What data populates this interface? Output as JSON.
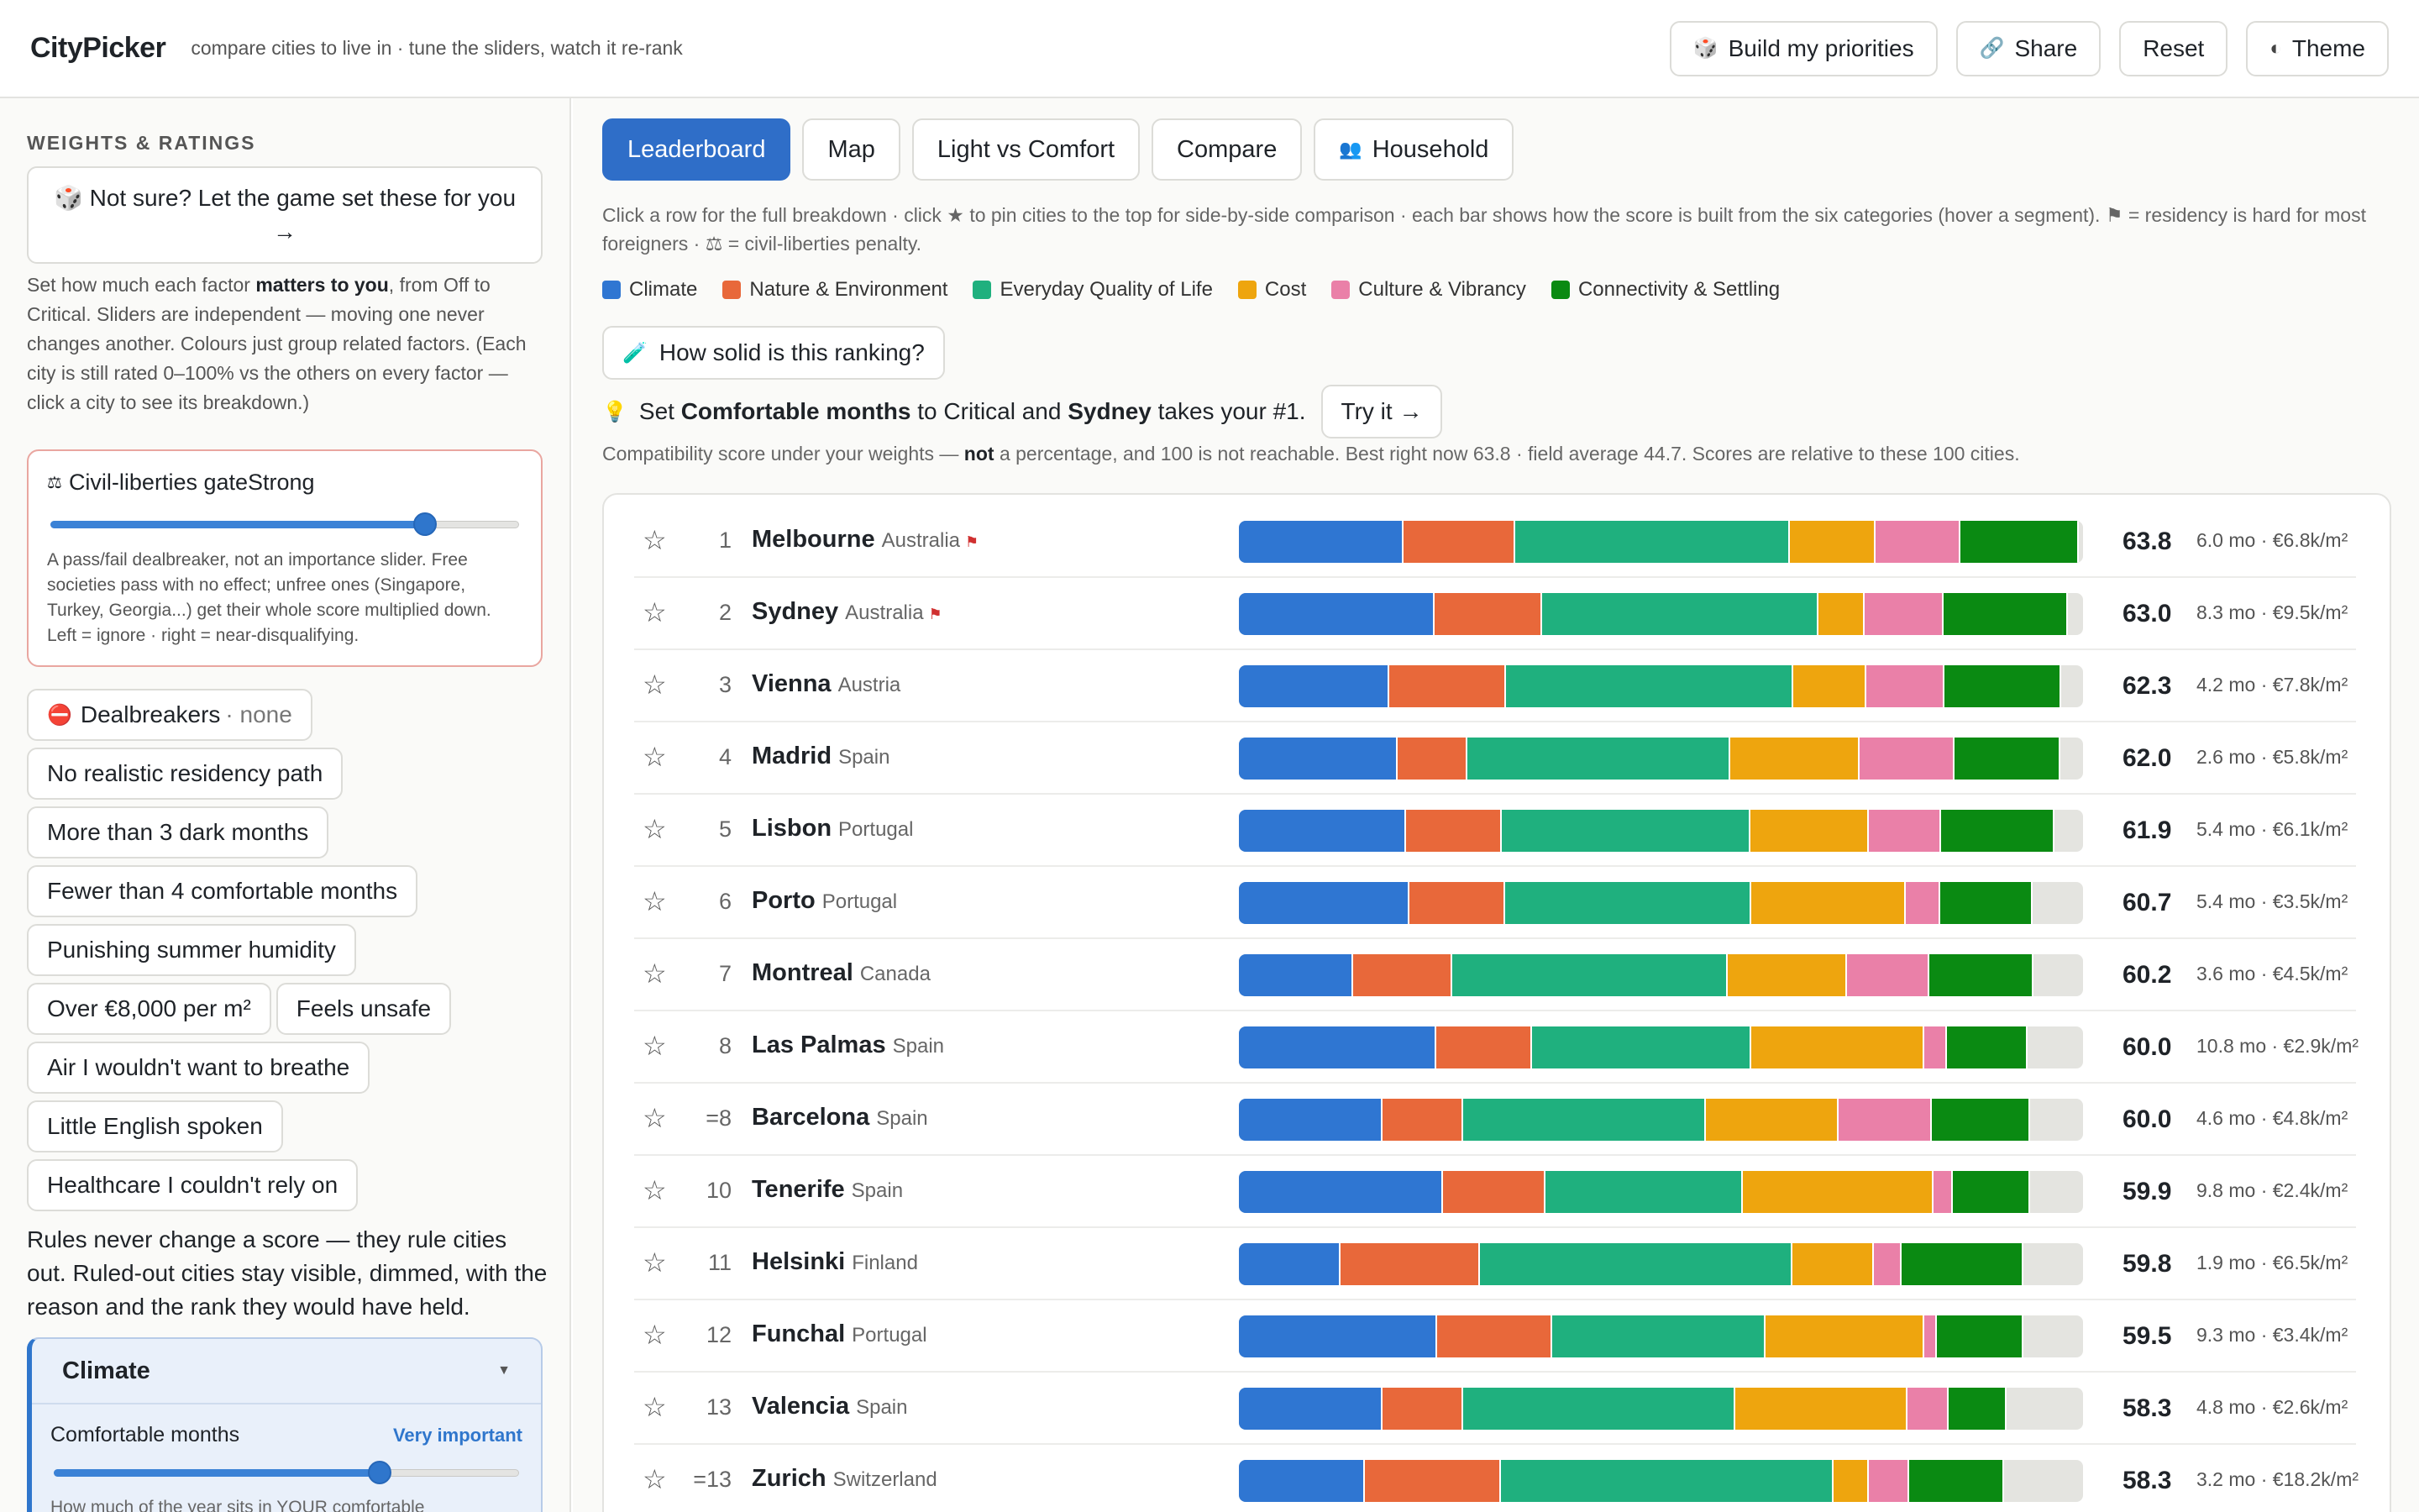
{
  "app": {
    "title": "CityPicker",
    "tagline": "compare cities to live in · tune the sliders, watch it re-rank"
  },
  "topbar": {
    "build_label": "Build my priorities",
    "share_label": "Share",
    "reset_label": "Reset",
    "theme_label": "Theme"
  },
  "left": {
    "section_title": "WEIGHTS & RATINGS",
    "game_label": "Not sure? Let the game set these for you →",
    "help_pre": "Set how much each factor ",
    "help_bold": "matters to you",
    "help_post": ", from Off to Critical. Sliders are independent — moving one never changes another. Colours just group related factors. (Each city is still rated 0–100% vs the others on every factor — click a city to see its breakdown.)",
    "gate": {
      "title": "Civil-liberties gate",
      "level": "Strong",
      "value_pct": 80,
      "help": "A pass/fail dealbreaker, not an importance slider. Free societies pass with no effect; unfree ones (Singapore, Turkey, Georgia...) get their whole score multiplied down. Left = ignore · right = near-disqualifying."
    },
    "dealbreakers_label": "Dealbreakers",
    "dealbreakers_status": "· none",
    "dealbreaker_options": [
      "No realistic residency path",
      "More than 3 dark months",
      "Fewer than 4 comfortable months",
      "Punishing summer humidity",
      "Over €8,000 per m²",
      "Feels unsafe",
      "Air I wouldn't want to breathe",
      "Little English spoken",
      "Healthcare I couldn't rely on"
    ],
    "rules_text": "Rules never change a score — they rule cities out. Ruled-out cities stay visible, dimmed, with the reason and the rank they would have held.",
    "climate": {
      "title": "Climate",
      "factor_label": "Comfortable months",
      "importance": "Very important",
      "value_pct": 70,
      "help": "How much of the year sits in YOUR comfortable temperature range. Each month scores by how close"
    }
  },
  "main": {
    "tabs": [
      {
        "label": "Leaderboard",
        "icon": "",
        "active": true
      },
      {
        "label": "Map",
        "icon": "",
        "active": false
      },
      {
        "label": "Light vs Comfort",
        "icon": "",
        "active": false
      },
      {
        "label": "Compare",
        "icon": "",
        "active": false
      },
      {
        "label": "Household",
        "icon": "👥",
        "active": false
      }
    ],
    "intro": "Click a row for the full breakdown · click ★ to pin cities to the top for side-by-side comparison · each bar shows how the score is built from the six categories (hover a segment). ⚑ = residency is hard for most foreigners · ⚖ = civil-liberties penalty.",
    "legend": [
      {
        "label": "Climate",
        "color": "#2f76d2"
      },
      {
        "label": "Nature & Environment",
        "color": "#e8683a"
      },
      {
        "label": "Everyday Quality of Life",
        "color": "#1fb07e"
      },
      {
        "label": "Cost",
        "color": "#eea50e"
      },
      {
        "label": "Culture & Vibrancy",
        "color": "#ea80a8"
      },
      {
        "label": "Connectivity & Settling",
        "color": "#0a8a12"
      }
    ],
    "solid_label": "How solid is this ranking?",
    "tip_pre": "Set ",
    "tip_factor": "Comfortable months",
    "tip_mid": " to Critical and ",
    "tip_city": "Sydney",
    "tip_post": " takes your #1.",
    "try_label": "Try it →",
    "compat_pre": "Compatibility score under your weights — ",
    "compat_bold": "not",
    "compat_post": " a percentage, and 100 is not reachable. Best right now 63.8 · field average 44.7. Scores are relative to these 100 cities."
  },
  "chart_data": {
    "type": "bar",
    "stacked": true,
    "orientation": "horizontal",
    "max_total": 100,
    "categories": [
      "Melbourne",
      "Sydney",
      "Vienna",
      "Madrid",
      "Lisbon",
      "Porto",
      "Montreal",
      "Las Palmas",
      "Barcelona",
      "Tenerife",
      "Helsinki",
      "Funchal",
      "Valencia",
      "Zurich"
    ],
    "series": [
      {
        "name": "Climate",
        "values": [
          19.5,
          23.2,
          17.8,
          18.8,
          19.8,
          20.2,
          13.5,
          23.4,
          17.0,
          24.2,
          12.0,
          23.5,
          17.0,
          14.9
        ]
      },
      {
        "name": "Nature & Environment",
        "values": [
          13.2,
          12.7,
          13.8,
          8.3,
          11.3,
          11.3,
          11.8,
          11.3,
          9.6,
          12.1,
          16.6,
          13.6,
          9.6,
          16.1
        ]
      },
      {
        "name": "Everyday Quality of Life",
        "values": [
          32.6,
          32.8,
          34.1,
          31.1,
          29.5,
          29.2,
          32.6,
          26.0,
          28.7,
          23.4,
          37.0,
          25.3,
          32.2,
          39.4
        ]
      },
      {
        "name": "Cost",
        "values": [
          10.1,
          5.4,
          8.6,
          15.3,
          14.0,
          18.3,
          14.1,
          20.5,
          15.7,
          22.6,
          9.6,
          18.8,
          20.4,
          4.2
        ]
      },
      {
        "name": "Culture & Vibrancy",
        "values": [
          10.1,
          9.4,
          9.3,
          11.3,
          8.6,
          4.1,
          9.8,
          2.7,
          11.1,
          2.3,
          3.3,
          1.5,
          4.9,
          4.8
        ]
      },
      {
        "name": "Connectivity & Settling",
        "values": [
          14.0,
          14.7,
          13.8,
          12.5,
          13.4,
          10.9,
          12.3,
          9.5,
          11.6,
          9.1,
          14.4,
          10.2,
          6.8,
          11.2
        ]
      }
    ],
    "rows": [
      {
        "rank": "1",
        "city": "Melbourne",
        "country": "Australia",
        "residency_flag": true,
        "score": "63.8",
        "meta": "6.0 mo · €6.8k/m²"
      },
      {
        "rank": "2",
        "city": "Sydney",
        "country": "Australia",
        "residency_flag": true,
        "score": "63.0",
        "meta": "8.3 mo · €9.5k/m²"
      },
      {
        "rank": "3",
        "city": "Vienna",
        "country": "Austria",
        "residency_flag": false,
        "score": "62.3",
        "meta": "4.2 mo · €7.8k/m²"
      },
      {
        "rank": "4",
        "city": "Madrid",
        "country": "Spain",
        "residency_flag": false,
        "score": "62.0",
        "meta": "2.6 mo · €5.8k/m²"
      },
      {
        "rank": "5",
        "city": "Lisbon",
        "country": "Portugal",
        "residency_flag": false,
        "score": "61.9",
        "meta": "5.4 mo · €6.1k/m²"
      },
      {
        "rank": "6",
        "city": "Porto",
        "country": "Portugal",
        "residency_flag": false,
        "score": "60.7",
        "meta": "5.4 mo · €3.5k/m²"
      },
      {
        "rank": "7",
        "city": "Montreal",
        "country": "Canada",
        "residency_flag": false,
        "score": "60.2",
        "meta": "3.6 mo · €4.5k/m²"
      },
      {
        "rank": "8",
        "city": "Las Palmas",
        "country": "Spain",
        "residency_flag": false,
        "score": "60.0",
        "meta": "10.8 mo · €2.9k/m²"
      },
      {
        "rank": "=8",
        "city": "Barcelona",
        "country": "Spain",
        "residency_flag": false,
        "score": "60.0",
        "meta": "4.6 mo · €4.8k/m²"
      },
      {
        "rank": "10",
        "city": "Tenerife",
        "country": "Spain",
        "residency_flag": false,
        "score": "59.9",
        "meta": "9.8 mo · €2.4k/m²"
      },
      {
        "rank": "11",
        "city": "Helsinki",
        "country": "Finland",
        "residency_flag": false,
        "score": "59.8",
        "meta": "1.9 mo · €6.5k/m²"
      },
      {
        "rank": "12",
        "city": "Funchal",
        "country": "Portugal",
        "residency_flag": false,
        "score": "59.5",
        "meta": "9.3 mo · €3.4k/m²"
      },
      {
        "rank": "13",
        "city": "Valencia",
        "country": "Spain",
        "residency_flag": false,
        "score": "58.3",
        "meta": "4.8 mo · €2.6k/m²"
      },
      {
        "rank": "=13",
        "city": "Zurich",
        "country": "Switzerland",
        "residency_flag": false,
        "score": "58.3",
        "meta": "3.2 mo · €18.2k/m²"
      }
    ]
  }
}
